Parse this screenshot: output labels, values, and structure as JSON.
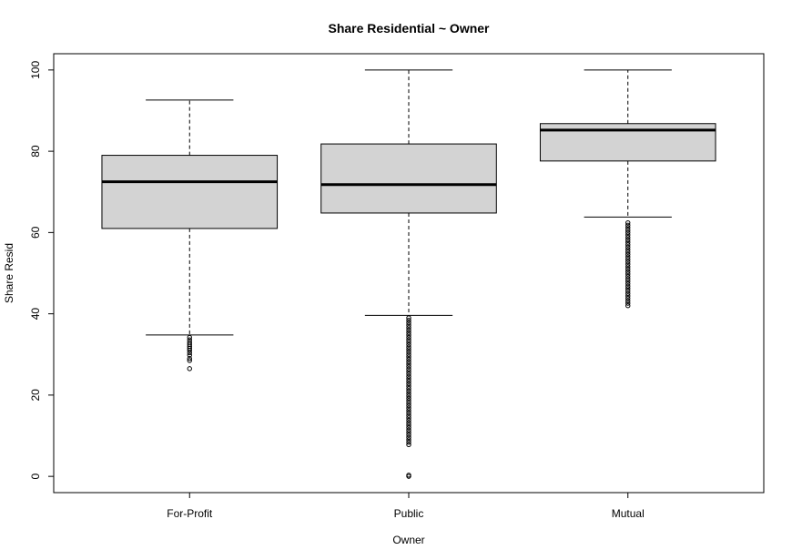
{
  "chart_data": {
    "type": "box",
    "title": "Share Residential ~ Owner",
    "xlabel": "Owner",
    "ylabel": "Share Resid",
    "ylim": [
      -4,
      104
    ],
    "yticks": [
      0,
      20,
      40,
      60,
      80,
      100
    ],
    "categories": [
      "For-Profit",
      "Public",
      "Mutual"
    ],
    "box_color": "#d3d3d3",
    "boxes": [
      {
        "category": "For-Profit",
        "whisker_low": 34.8,
        "q1": 61.0,
        "median": 72.5,
        "q3": 79.0,
        "whisker_high": 92.6,
        "outliers": [
          34.2,
          33.6,
          33.0,
          32.5,
          32.0,
          31.5,
          31.0,
          30.4,
          29.8,
          29.0,
          28.5,
          26.5
        ]
      },
      {
        "category": "Public",
        "whisker_low": 39.6,
        "q1": 64.8,
        "median": 71.8,
        "q3": 81.8,
        "whisker_high": 100,
        "outliers": [
          39.0,
          38.4,
          37.8,
          37.2,
          36.6,
          36.0,
          35.4,
          34.8,
          34.2,
          33.6,
          33.0,
          32.4,
          31.8,
          31.2,
          30.6,
          30.0,
          29.4,
          28.8,
          28.2,
          27.6,
          27.0,
          26.4,
          25.8,
          25.2,
          24.6,
          24.0,
          23.4,
          22.8,
          22.2,
          21.6,
          21.0,
          20.4,
          19.8,
          19.2,
          18.6,
          18.0,
          17.4,
          16.8,
          16.2,
          15.6,
          15.0,
          14.4,
          13.8,
          13.2,
          12.6,
          12.0,
          11.4,
          10.8,
          10.2,
          9.6,
          9.0,
          8.4,
          7.8,
          0.3,
          0.0
        ]
      },
      {
        "category": "Mutual",
        "whisker_low": 63.8,
        "q1": 77.6,
        "median": 85.2,
        "q3": 86.8,
        "whisker_high": 100,
        "outliers": [
          62.4,
          61.8,
          61.2,
          60.6,
          60.0,
          59.4,
          58.8,
          58.2,
          57.6,
          57.0,
          56.4,
          55.8,
          55.2,
          54.6,
          54.0,
          53.4,
          52.8,
          52.2,
          51.6,
          51.0,
          50.4,
          49.8,
          49.2,
          48.6,
          48.0,
          47.4,
          46.8,
          46.2,
          45.6,
          45.0,
          44.4,
          43.8,
          43.2,
          42.6,
          42.0
        ]
      }
    ]
  }
}
